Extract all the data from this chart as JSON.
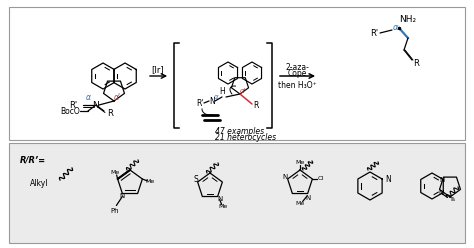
{
  "bg_color": "#ffffff",
  "top_box_color": "#ffffff",
  "bottom_box_color": "#ebebeb",
  "border_color": "#999999",
  "blue_color": "#3377bb",
  "red_color": "#cc3333",
  "black": "#000000",
  "cope_label1": "2-aza-",
  "cope_label2": "Cope",
  "then_label": "then H₃O⁺",
  "examples_label": "47 examples",
  "heterocycles_label": "21 heterocycles",
  "rr_label": "R/R’=",
  "alkyl_label": "Alkyl",
  "nh2_label": "NH₂",
  "ir_label": "[Ir]"
}
